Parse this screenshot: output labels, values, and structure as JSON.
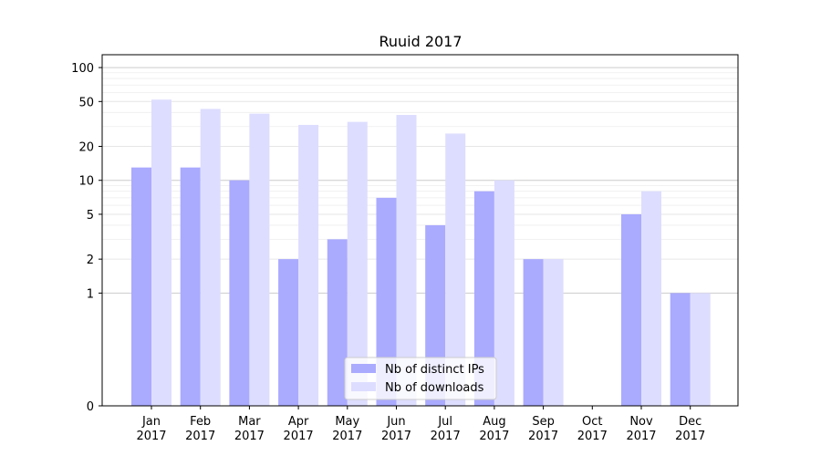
{
  "chart_data": {
    "type": "bar",
    "title": "Ruuid 2017",
    "xlabel": "",
    "ylabel": "",
    "scale": "symlog",
    "ylim": [
      0,
      130
    ],
    "yticks": [
      0,
      1,
      2,
      5,
      10,
      20,
      50,
      100
    ],
    "grid": true,
    "legend_position": "bottom-center",
    "categories": [
      "Jan",
      "Feb",
      "Mar",
      "Apr",
      "May",
      "Jun",
      "Jul",
      "Aug",
      "Sep",
      "Oct",
      "Nov",
      "Dec"
    ],
    "category_year": "2017",
    "series": [
      {
        "name": "Nb of distinct IPs",
        "color": "#aaaaff",
        "values": [
          13,
          13,
          10,
          2,
          3,
          7,
          4,
          8,
          2,
          0,
          5,
          1
        ]
      },
      {
        "name": "Nb of downloads",
        "color": "#ddddff",
        "values": [
          52,
          43,
          39,
          31,
          33,
          38,
          26,
          10,
          2,
          0,
          8,
          1
        ]
      }
    ]
  }
}
